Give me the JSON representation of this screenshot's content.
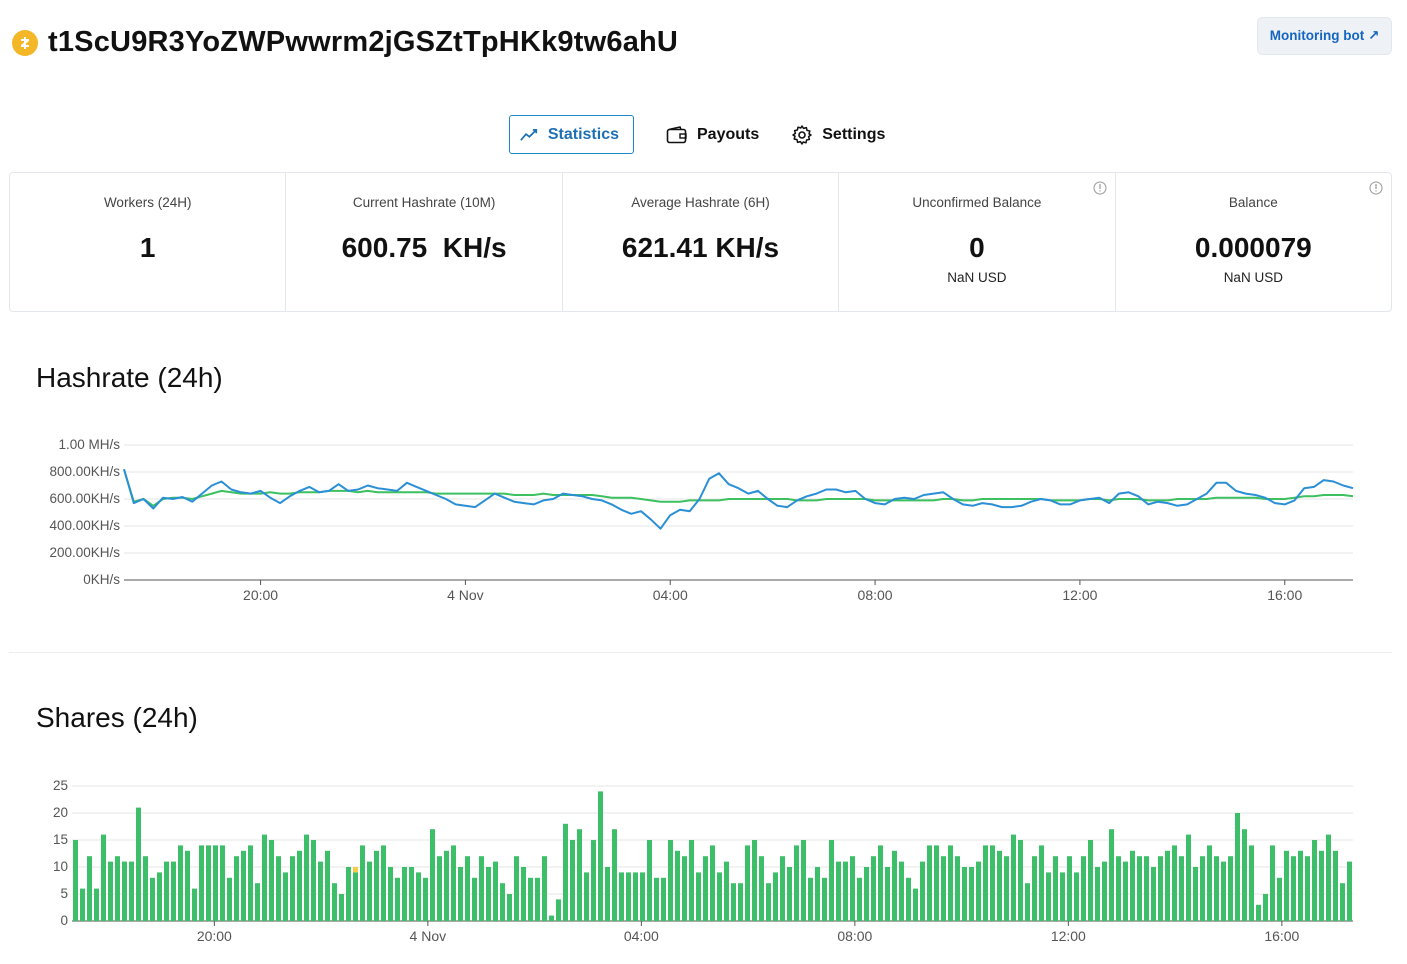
{
  "header": {
    "wallet_address": "t1ScU9R3YoZWPwwrm2jGSZtTpHKk9tw6ahU",
    "coin_icon": "zcash-coin-icon",
    "monitoring_button": "Monitoring bot ↗"
  },
  "tabs": [
    {
      "label": "Statistics",
      "icon": "chart-line-icon",
      "active": true
    },
    {
      "label": "Payouts",
      "icon": "wallet-icon",
      "active": false
    },
    {
      "label": "Settings",
      "icon": "gear-icon",
      "active": false
    }
  ],
  "stats": [
    {
      "label": "Workers (24H)",
      "value": "1",
      "sub": ""
    },
    {
      "label": "Current Hashrate (10M)",
      "value": "600.75  KH/s",
      "sub": ""
    },
    {
      "label": "Average Hashrate (6H)",
      "value": "621.41 KH/s",
      "sub": ""
    },
    {
      "label": "Unconfirmed Balance",
      "value": "0",
      "sub": "NaN USD"
    },
    {
      "label": "Balance",
      "value": "0.000079",
      "sub": "NaN USD"
    }
  ],
  "colors": {
    "accent": "#1e88c7",
    "blue_line": "#2b8fd6",
    "green_line": "#3cc060",
    "green_bar": "#3dbf6a",
    "yellow_bar": "#f5cc48"
  },
  "hashrate": {
    "title": "Hashrate (24h)",
    "chart_data": {
      "type": "line",
      "y_ticks": [
        "1.00 MH/s",
        "800.00KH/s",
        "600.00KH/s",
        "400.00KH/s",
        "200.00KH/s",
        "0KH/s"
      ],
      "ylim": [
        0,
        1000
      ],
      "x_ticks": [
        "20:00",
        "4 Nov",
        "04:00",
        "08:00",
        "12:00",
        "16:00"
      ],
      "x_tick_positions": [
        2.667,
        6.667,
        10.667,
        14.667,
        18.667,
        22.667
      ],
      "xlim": [
        0,
        24
      ],
      "series": [
        {
          "color": "#2b8fd6",
          "values": [
            820,
            570,
            600,
            530,
            610,
            600,
            615,
            580,
            640,
            700,
            730,
            670,
            650,
            640,
            660,
            610,
            570,
            620,
            660,
            690,
            650,
            660,
            710,
            660,
            670,
            700,
            680,
            670,
            660,
            720,
            690,
            660,
            630,
            600,
            560,
            550,
            540,
            590,
            640,
            610,
            580,
            570,
            560,
            590,
            600,
            640,
            630,
            620,
            600,
            590,
            560,
            520,
            490,
            510,
            450,
            380,
            480,
            520,
            510,
            600,
            750,
            790,
            710,
            680,
            640,
            660,
            600,
            550,
            540,
            590,
            620,
            640,
            670,
            670,
            650,
            660,
            600,
            570,
            560,
            600,
            610,
            600,
            630,
            640,
            650,
            600,
            560,
            550,
            570,
            560,
            540,
            540,
            550,
            580,
            600,
            590,
            560,
            560,
            590,
            600,
            610,
            570,
            640,
            650,
            620,
            560,
            580,
            570,
            550,
            560,
            600,
            640,
            720,
            720,
            660,
            640,
            630,
            610,
            570,
            560,
            590,
            680,
            690,
            740,
            730,
            700,
            680
          ]
        },
        {
          "color": "#3cc060",
          "values": [
            820,
            580,
            600,
            550,
            600,
            610,
            610,
            600,
            620,
            640,
            660,
            650,
            640,
            640,
            640,
            650,
            640,
            640,
            650,
            650,
            650,
            660,
            660,
            660,
            650,
            660,
            650,
            650,
            650,
            650,
            650,
            650,
            640,
            640,
            640,
            640,
            640,
            640,
            640,
            640,
            630,
            630,
            630,
            640,
            630,
            630,
            630,
            630,
            630,
            620,
            610,
            610,
            610,
            600,
            590,
            580,
            580,
            580,
            590,
            590,
            590,
            590,
            600,
            600,
            600,
            600,
            600,
            600,
            600,
            590,
            590,
            590,
            600,
            600,
            600,
            600,
            600,
            590,
            590,
            590,
            590,
            590,
            590,
            590,
            600,
            600,
            590,
            590,
            600,
            600,
            600,
            600,
            600,
            600,
            600,
            590,
            590,
            590,
            590,
            600,
            600,
            590,
            600,
            600,
            600,
            590,
            590,
            590,
            600,
            600,
            600,
            600,
            610,
            610,
            610,
            610,
            610,
            600,
            600,
            600,
            610,
            620,
            620,
            630,
            630,
            630,
            620
          ]
        }
      ]
    }
  },
  "shares": {
    "title": "Shares (24h)",
    "chart_data": {
      "type": "bar",
      "y_ticks": [
        "25",
        "20",
        "15",
        "10",
        "5",
        "0"
      ],
      "ylim": [
        0,
        25
      ],
      "x_ticks": [
        "20:00",
        "4 Nov",
        "04:00",
        "08:00",
        "12:00",
        "16:00"
      ],
      "x_tick_positions": [
        2.667,
        6.667,
        10.667,
        14.667,
        18.667,
        22.667
      ],
      "xlim": [
        0,
        24
      ],
      "series": [
        {
          "color": "#3dbf6a",
          "values": [
            15,
            6,
            12,
            6,
            16,
            11,
            12,
            11,
            11,
            21,
            12,
            8,
            9,
            11,
            11,
            14,
            13,
            6,
            14,
            14,
            14,
            14,
            8,
            12,
            13,
            14,
            7,
            16,
            15,
            12,
            9,
            12,
            13,
            16,
            15,
            11,
            13,
            7,
            5,
            10,
            9,
            14,
            11,
            13,
            14,
            10,
            8,
            10,
            10,
            9,
            8,
            17,
            12,
            13,
            14,
            10,
            12,
            8,
            12,
            10,
            11,
            7,
            5,
            12,
            10,
            8,
            8,
            12,
            1,
            4,
            18,
            15,
            17,
            9,
            15,
            24,
            10,
            17,
            9,
            9,
            9,
            9,
            15,
            8,
            8,
            15,
            13,
            12,
            15,
            9,
            12,
            14,
            9,
            11,
            7,
            7,
            14,
            15,
            12,
            7,
            9,
            12,
            10,
            14,
            15,
            8,
            10,
            8,
            15,
            11,
            11,
            12,
            8,
            10,
            12,
            14,
            10,
            13,
            11,
            8,
            6,
            11,
            14,
            14,
            12,
            14,
            12,
            10,
            10,
            11,
            14,
            14,
            13,
            12,
            16,
            15,
            7,
            12,
            14,
            9,
            12,
            9,
            12,
            9,
            12,
            15,
            10,
            11,
            17,
            12,
            11,
            13,
            12,
            12,
            10,
            12,
            13,
            14,
            12,
            16,
            10,
            12,
            14,
            12,
            11,
            12,
            20,
            17,
            14,
            3,
            5,
            14,
            8,
            13,
            12,
            13,
            12,
            15,
            13,
            16,
            13,
            7,
            11
          ]
        },
        {
          "color": "#f5cc48",
          "values": [
            0,
            0,
            0,
            0,
            0,
            0,
            0,
            0,
            0,
            0,
            0,
            0,
            0,
            0,
            0,
            0,
            0,
            0,
            0,
            0,
            0,
            0,
            0,
            0,
            0,
            14,
            0,
            0,
            0,
            0,
            0,
            0,
            0,
            0,
            0,
            0,
            0,
            0,
            0,
            0,
            10,
            0,
            0,
            0,
            0,
            0,
            0,
            0,
            0,
            0,
            0,
            0,
            0,
            0,
            0,
            0,
            0,
            0,
            0,
            0,
            0,
            0,
            0,
            0,
            0,
            0,
            0,
            0,
            0,
            0,
            0,
            0,
            0,
            0,
            0,
            0,
            0,
            0,
            0,
            0,
            0,
            0,
            0,
            0,
            0,
            0,
            0,
            0,
            0,
            0,
            0,
            0,
            0,
            0,
            0,
            0,
            0,
            0,
            0,
            0,
            0,
            0,
            0,
            0,
            0,
            0,
            0,
            0,
            0,
            0,
            0,
            0,
            0,
            0,
            0,
            0,
            0,
            0,
            0,
            0,
            0,
            0,
            0,
            0,
            0,
            0,
            0,
            0,
            0,
            0,
            0,
            0,
            0,
            0,
            0,
            0,
            0,
            0,
            0,
            0,
            0,
            0,
            0,
            0,
            0,
            0,
            0,
            0,
            0,
            0,
            0,
            0,
            0,
            0,
            0,
            0,
            0,
            0,
            0,
            0,
            0,
            0,
            0,
            0,
            0,
            0,
            0,
            0,
            0,
            0,
            0,
            0,
            0,
            0,
            0,
            0,
            0,
            0,
            0,
            0,
            0,
            0,
            0
          ]
        }
      ]
    }
  }
}
